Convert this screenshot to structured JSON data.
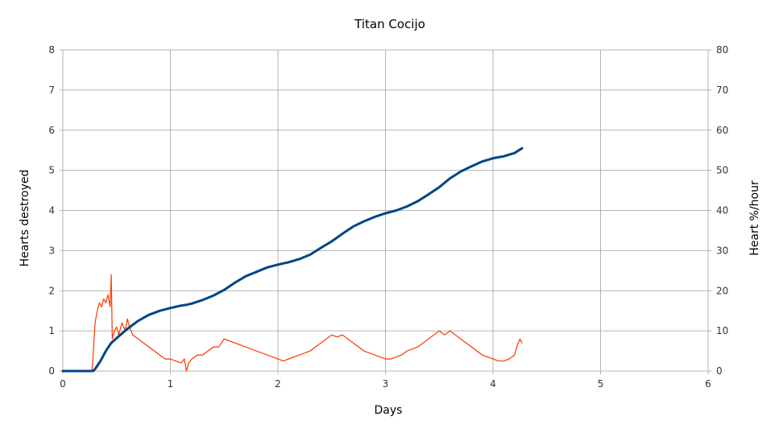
{
  "chart_data": {
    "type": "line",
    "title": "Titan Cocijo",
    "xlabel": "Days",
    "ylabel": "Hearts destroyed",
    "y2label": "Heart %/hour",
    "xlim": [
      0,
      6
    ],
    "ylim": [
      0,
      8
    ],
    "y2lim": [
      0,
      80
    ],
    "xticks": [
      "0",
      "1",
      "2",
      "3",
      "4",
      "5",
      "6"
    ],
    "yticks": [
      "0",
      "1",
      "2",
      "3",
      "4",
      "5",
      "6",
      "7",
      "8"
    ],
    "y2ticks": [
      "0",
      "10",
      "20",
      "30",
      "40",
      "50",
      "60",
      "70",
      "80"
    ],
    "grid": true,
    "legend": "none",
    "series": [
      {
        "axis": "left",
        "color": "#004586",
        "x": [
          0,
          0.28,
          0.3,
          0.35,
          0.4,
          0.45,
          0.5,
          0.6,
          0.7,
          0.8,
          0.9,
          1.0,
          1.1,
          1.15,
          1.2,
          1.3,
          1.4,
          1.5,
          1.6,
          1.7,
          1.8,
          1.9,
          2.0,
          2.1,
          2.2,
          2.3,
          2.4,
          2.5,
          2.6,
          2.7,
          2.8,
          2.9,
          3.0,
          3.1,
          3.2,
          3.3,
          3.4,
          3.5,
          3.6,
          3.7,
          3.8,
          3.9,
          4.0,
          4.1,
          4.2,
          4.27
        ],
        "y": [
          0,
          0,
          0.05,
          0.25,
          0.5,
          0.7,
          0.82,
          1.05,
          1.25,
          1.4,
          1.5,
          1.57,
          1.63,
          1.65,
          1.68,
          1.77,
          1.88,
          2.02,
          2.2,
          2.36,
          2.47,
          2.58,
          2.65,
          2.71,
          2.79,
          2.9,
          3.07,
          3.23,
          3.42,
          3.6,
          3.73,
          3.84,
          3.93,
          4.0,
          4.1,
          4.23,
          4.4,
          4.58,
          4.8,
          4.97,
          5.1,
          5.22,
          5.3,
          5.35,
          5.43,
          5.55
        ]
      },
      {
        "axis": "right",
        "color": "#ff420e",
        "x": [
          0,
          0.27,
          0.28,
          0.29,
          0.3,
          0.32,
          0.34,
          0.36,
          0.38,
          0.4,
          0.42,
          0.44,
          0.45,
          0.46,
          0.48,
          0.5,
          0.52,
          0.55,
          0.58,
          0.6,
          0.62,
          0.65,
          0.7,
          0.75,
          0.8,
          0.85,
          0.9,
          0.95,
          1.0,
          1.05,
          1.1,
          1.13,
          1.15,
          1.17,
          1.2,
          1.25,
          1.3,
          1.35,
          1.4,
          1.45,
          1.5,
          1.55,
          1.6,
          1.65,
          1.7,
          1.75,
          1.8,
          1.85,
          1.9,
          1.95,
          2.0,
          2.05,
          2.1,
          2.15,
          2.2,
          2.25,
          2.3,
          2.35,
          2.4,
          2.45,
          2.5,
          2.55,
          2.6,
          2.65,
          2.7,
          2.75,
          2.8,
          2.85,
          2.9,
          2.95,
          3.0,
          3.05,
          3.1,
          3.15,
          3.2,
          3.25,
          3.3,
          3.35,
          3.4,
          3.45,
          3.5,
          3.55,
          3.6,
          3.65,
          3.7,
          3.75,
          3.8,
          3.85,
          3.9,
          3.95,
          4.0,
          4.05,
          4.1,
          4.15,
          4.2,
          4.22,
          4.25,
          4.27
        ],
        "y": [
          0,
          0,
          3,
          8,
          12,
          15,
          17,
          16,
          18,
          17,
          19,
          16,
          24,
          8,
          10,
          11,
          9,
          12,
          10,
          13,
          11,
          9,
          8,
          7,
          6,
          5,
          4,
          3,
          3,
          2.5,
          2,
          3,
          0,
          2,
          3,
          4,
          4,
          5,
          6,
          6,
          8,
          7.5,
          7,
          6.5,
          6,
          5.5,
          5,
          4.5,
          4,
          3.5,
          3,
          2.5,
          3,
          3.5,
          4,
          4.5,
          5,
          6,
          7,
          8,
          9,
          8.5,
          9,
          8,
          7,
          6,
          5,
          4.5,
          4,
          3.5,
          3,
          3,
          3.5,
          4,
          5,
          5.5,
          6,
          7,
          8,
          9,
          10,
          9,
          10,
          9,
          8,
          7,
          6,
          5,
          4,
          3.5,
          3,
          2.5,
          2.5,
          3,
          4,
          6,
          8,
          7
        ]
      }
    ]
  }
}
